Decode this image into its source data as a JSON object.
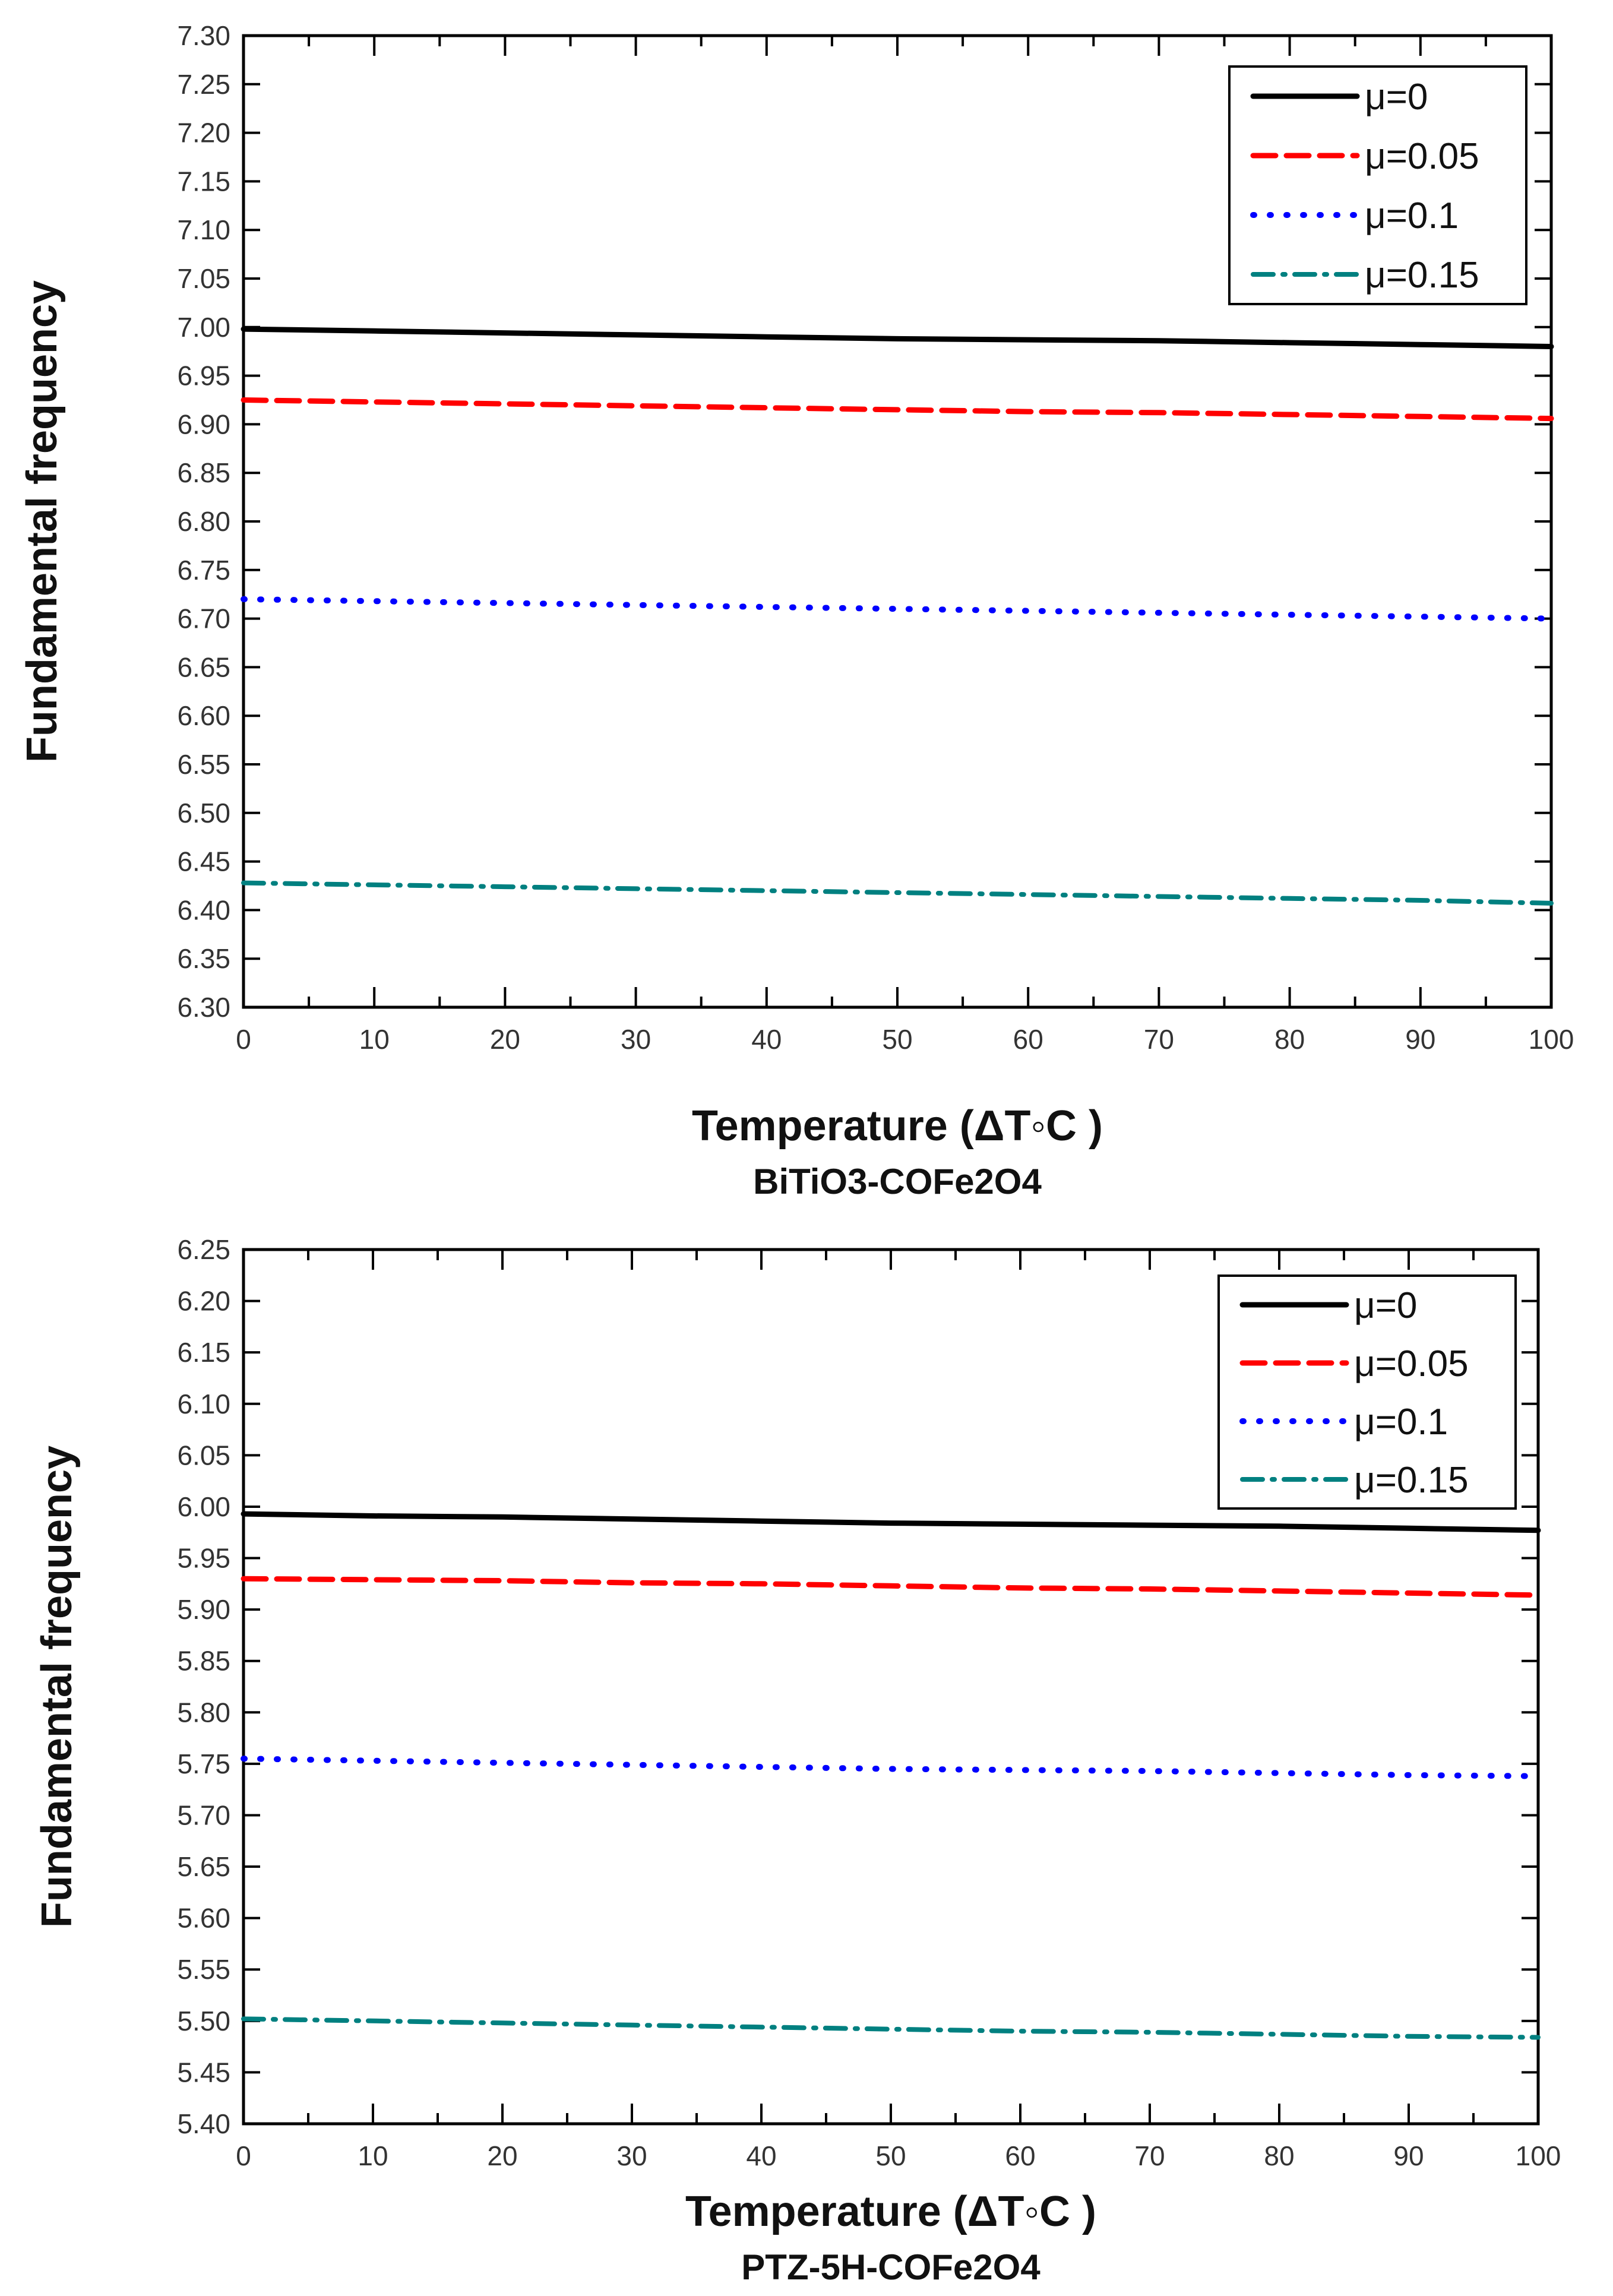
{
  "chart_data": [
    {
      "type": "line",
      "title": "BiTiO3-COFe2O4",
      "xlabel": "Temperature (ΔT◦C )",
      "ylabel": "Fundamental frequency",
      "xlim": [
        0,
        100
      ],
      "ylim": [
        6.3,
        7.3
      ],
      "x_ticks": [
        "0",
        "10",
        "20",
        "30",
        "40",
        "50",
        "60",
        "70",
        "80",
        "90",
        "100"
      ],
      "y_ticks": [
        "6.30",
        "6.35",
        "6.40",
        "6.45",
        "6.50",
        "6.55",
        "6.60",
        "6.65",
        "6.70",
        "6.75",
        "6.80",
        "6.85",
        "6.90",
        "6.95",
        "7.00",
        "7.05",
        "7.10",
        "7.15",
        "7.20",
        "7.25",
        "7.30"
      ],
      "legend_position": "top-right",
      "x": [
        0,
        10,
        20,
        30,
        40,
        50,
        60,
        70,
        80,
        90,
        100
      ],
      "series": [
        {
          "name": "μ=0",
          "color": "#000000",
          "style": "solid",
          "values": [
            6.998,
            6.996,
            6.994,
            6.992,
            6.99,
            6.988,
            6.987,
            6.986,
            6.984,
            6.982,
            6.98
          ]
        },
        {
          "name": "μ=0.05",
          "color": "#ff0000",
          "style": "dashed",
          "values": [
            6.925,
            6.923,
            6.921,
            6.919,
            6.917,
            6.915,
            6.913,
            6.912,
            6.91,
            6.908,
            6.906
          ]
        },
        {
          "name": "μ=0.1",
          "color": "#0000ff",
          "style": "dotted",
          "values": [
            6.72,
            6.718,
            6.716,
            6.714,
            6.712,
            6.71,
            6.708,
            6.706,
            6.704,
            6.702,
            6.7
          ]
        },
        {
          "name": "μ=0.15",
          "color": "#008080",
          "style": "dashdot",
          "values": [
            6.428,
            6.426,
            6.424,
            6.422,
            6.42,
            6.418,
            6.416,
            6.414,
            6.412,
            6.41,
            6.407
          ]
        }
      ]
    },
    {
      "type": "line",
      "title": "PTZ-5H-COFe2O4",
      "xlabel": "Temperature (ΔT◦C )",
      "ylabel": "Fundamental frequency",
      "xlim": [
        0,
        100
      ],
      "ylim": [
        5.4,
        6.25
      ],
      "x_ticks": [
        "0",
        "10",
        "20",
        "30",
        "40",
        "50",
        "60",
        "70",
        "80",
        "90",
        "100"
      ],
      "y_ticks": [
        "5.40",
        "5.45",
        "5.50",
        "5.55",
        "5.60",
        "5.65",
        "5.70",
        "5.75",
        "5.80",
        "5.85",
        "5.90",
        "5.95",
        "6.00",
        "6.05",
        "6.10",
        "6.15",
        "6.20",
        "6.25"
      ],
      "legend_position": "top-right",
      "x": [
        0,
        10,
        20,
        30,
        40,
        50,
        60,
        70,
        80,
        90,
        100
      ],
      "series": [
        {
          "name": "μ=0",
          "color": "#000000",
          "style": "solid",
          "values": [
            5.993,
            5.991,
            5.99,
            5.988,
            5.986,
            5.984,
            5.983,
            5.982,
            5.981,
            5.979,
            5.977
          ]
        },
        {
          "name": "μ=0.05",
          "color": "#ff0000",
          "style": "dashed",
          "values": [
            5.93,
            5.929,
            5.928,
            5.926,
            5.925,
            5.923,
            5.921,
            5.92,
            5.918,
            5.916,
            5.914
          ]
        },
        {
          "name": "μ=0.1",
          "color": "#0000ff",
          "style": "dotted",
          "values": [
            5.755,
            5.753,
            5.751,
            5.749,
            5.747,
            5.745,
            5.744,
            5.743,
            5.741,
            5.739,
            5.738
          ]
        },
        {
          "name": "μ=0.15",
          "color": "#008080",
          "style": "dashdot",
          "values": [
            5.502,
            5.5,
            5.498,
            5.496,
            5.494,
            5.492,
            5.49,
            5.489,
            5.487,
            5.485,
            5.484
          ]
        }
      ]
    }
  ]
}
